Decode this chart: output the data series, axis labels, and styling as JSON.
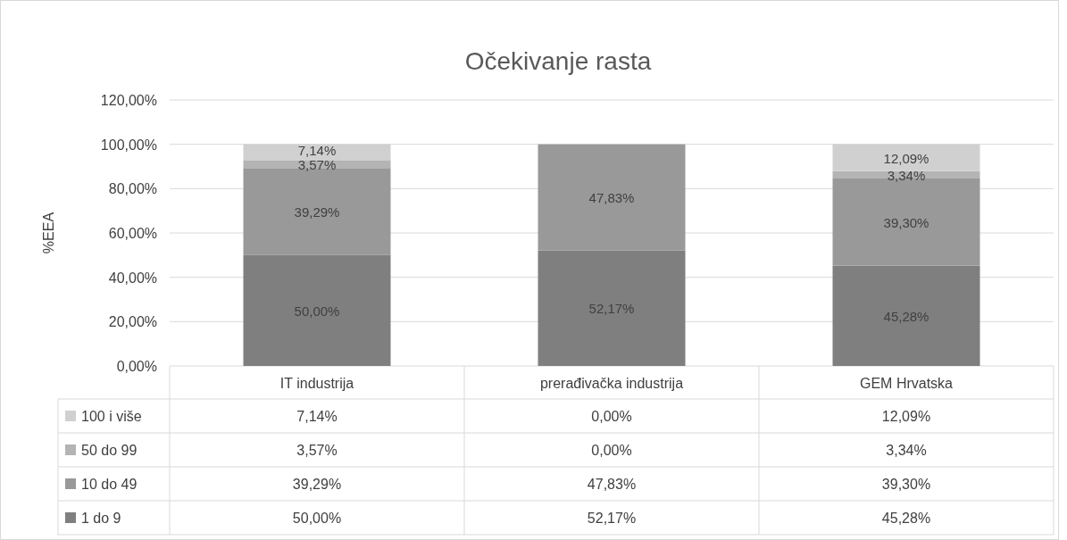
{
  "chart_data": {
    "type": "bar",
    "title": "Očekivanje rasta",
    "ylabel": "%EEA",
    "categories": [
      "IT industrija",
      "prerađivačka industrija",
      "GEM Hrvatska"
    ],
    "stacked": true,
    "series": [
      {
        "name": "1 do 9",
        "color": "#7f7f7f",
        "values": [
          50.0,
          52.17,
          45.28
        ],
        "value_labels": [
          "50,00%",
          "52,17%",
          "45,28%"
        ]
      },
      {
        "name": "10 do 49",
        "color": "#999999",
        "values": [
          39.29,
          47.83,
          39.3
        ],
        "value_labels": [
          "39,29%",
          "47,83%",
          "39,30%"
        ]
      },
      {
        "name": "50 do 99",
        "color": "#b4b4b4",
        "values": [
          3.57,
          0.0,
          3.34
        ],
        "value_labels": [
          "3,57%",
          "0,00%",
          "3,34%"
        ]
      },
      {
        "name": "100 i više",
        "color": "#d0d0d0",
        "values": [
          7.14,
          0.0,
          12.09
        ],
        "value_labels": [
          "7,14%",
          "0,00%",
          "12,09%"
        ]
      }
    ],
    "ylim": [
      0,
      120
    ],
    "yticks": [
      {
        "value": 0,
        "label": "0,00%"
      },
      {
        "value": 20,
        "label": "20,00%"
      },
      {
        "value": 40,
        "label": "40,00%"
      },
      {
        "value": 60,
        "label": "60,00%"
      },
      {
        "value": 80,
        "label": "80,00%"
      },
      {
        "value": 100,
        "label": "100,00%"
      },
      {
        "value": 120,
        "label": "120,00%"
      }
    ],
    "grid": "y",
    "legend": "bottom"
  }
}
